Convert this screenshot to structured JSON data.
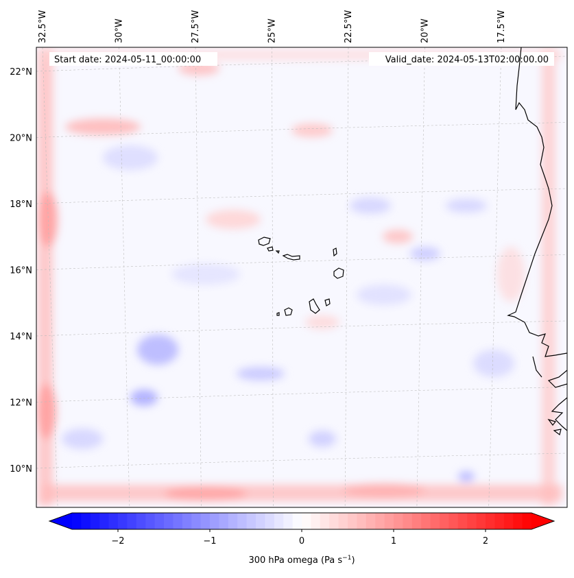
{
  "figure": {
    "start_date": "Start date: 2024-05-11_00:00:00",
    "valid_date": "Valid_date: 2024-05-13T02:00:00.00"
  },
  "axes": {
    "lon_labels": [
      "32.5°W",
      "30°W",
      "27.5°W",
      "25°W",
      "22.5°W",
      "20°W",
      "17.5°W"
    ],
    "lon_values": [
      -32.5,
      -30,
      -27.5,
      -25,
      -22.5,
      -20,
      -17.5
    ],
    "lat_labels": [
      "22°N",
      "20°N",
      "18°N",
      "16°N",
      "14°N",
      "12°N",
      "10°N"
    ],
    "lat_values": [
      22,
      20,
      18,
      16,
      14,
      12,
      10
    ],
    "gridlines": true
  },
  "colorbar": {
    "label_prefix": "300 hPa omega (Pa s",
    "label_sup": "−1",
    "label_suffix": ")",
    "tick_labels": [
      "−2",
      "−1",
      "0",
      "1",
      "2"
    ],
    "tick_values": [
      -2,
      -1,
      0,
      1,
      2
    ],
    "vmin": -2.5,
    "vmax": 2.5,
    "extend": "both",
    "colormap": "bwr",
    "low_color": "#0000ff",
    "mid_color": "#ffffff",
    "high_color": "#ff0000"
  },
  "map": {
    "variable": "300 hPa omega",
    "features": [
      "coastline",
      "Cape Verde islands",
      "West African coast"
    ],
    "extent": {
      "lon_min": -32.6,
      "lon_max": -15.7,
      "lat_min": 9.0,
      "lat_max": 22.6
    }
  }
}
